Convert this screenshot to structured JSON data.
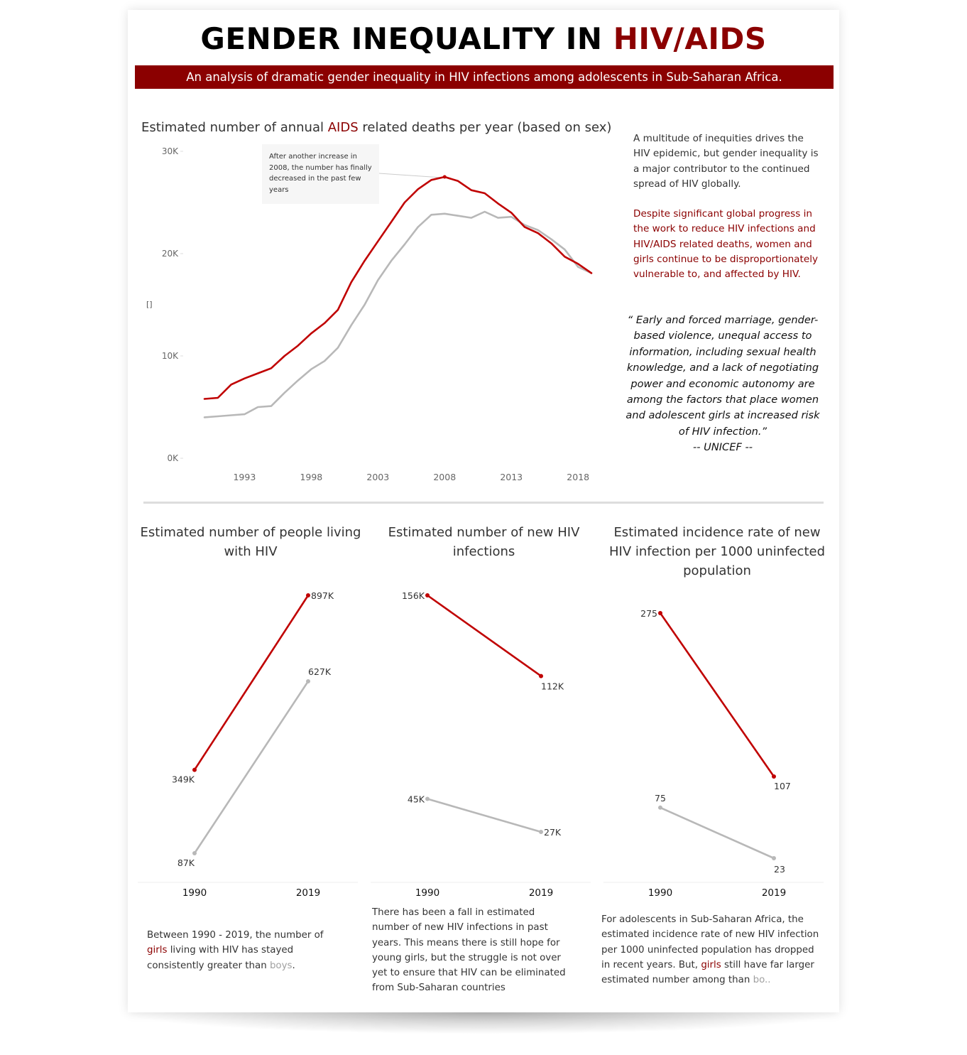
{
  "header": {
    "title_main": "GENDER INEQUALITY IN ",
    "title_accent": "HIV/AIDS",
    "subtitle": "An analysis of dramatic gender inequality in HIV infections among adolescents in Sub-Saharan Africa."
  },
  "colors": {
    "accent": "#8b0000",
    "female_line": "#c00000",
    "male_line": "#b8b8b8",
    "divider": "#dddddd"
  },
  "main_chart": {
    "title_pre": "Estimated number of annual ",
    "title_accent": "AIDS",
    "title_post": " related deaths per year (based on sex)",
    "annotation": "After another increase in 2008, the number has finally decreased in the past few years",
    "y_axis_glyph": "[]"
  },
  "side_panel": {
    "paragraph1": "A multitude of inequities drives the HIV epidemic, but gender inequality is a major contributor to the continued spread of HIV globally.",
    "paragraph2": "Despite significant global progress in the work to reduce HIV infections and HIV/AIDS related deaths, women and girls continue to be disproportionately vulnerable to, and affected by HIV.",
    "quote": "“ Early and forced marriage, gender-based violence, unequal access to information, including sexual health knowledge, and a lack of negotiating power and economic autonomy are among the factors that place women and adolescent girls at increased risk of HIV infection.”",
    "quote_source": "-- UNICEF --"
  },
  "mini_charts": [
    {
      "title": "Estimated number of people living with HIV",
      "note_pre": "Between 1990 - 2019, the number of ",
      "note_girls": "girls",
      "note_mid": " living with HIV has stayed consistently greater than ",
      "note_boys": "boys",
      "note_post": "."
    },
    {
      "title": "Estimated number of new HIV infections",
      "note": "There has been a fall in estimated number of new HIV infections in past years. This means there is still hope for young girls, but the struggle is not over yet to ensure that HIV can be eliminated from Sub-Saharan countries"
    },
    {
      "title": "Estimated incidence rate of new HIV infection per 1000 uninfected population",
      "note_pre": "For adolescents in Sub-Saharan Africa, the estimated incidence rate of new HIV infection per 1000 uninfected population has dropped in recent years. But, ",
      "note_girls": "girls",
      "note_mid": " still have far larger estimated number among than ",
      "note_boys": "bo..",
      "note_post": ""
    }
  ],
  "chart_data": [
    {
      "type": "line",
      "title": "Estimated number of annual AIDS related deaths per year (based on sex)",
      "x": [
        1990,
        1991,
        1992,
        1993,
        1994,
        1995,
        1996,
        1997,
        1998,
        1999,
        2000,
        2001,
        2002,
        2003,
        2004,
        2005,
        2006,
        2007,
        2008,
        2009,
        2010,
        2011,
        2012,
        2013,
        2014,
        2015,
        2016,
        2017,
        2018,
        2019
      ],
      "x_ticks": [
        1993,
        1998,
        2003,
        2008,
        2013,
        2018
      ],
      "y_ticks": [
        0,
        10000,
        20000,
        30000
      ],
      "y_tick_labels": [
        "0K",
        "10K",
        "20K",
        "30K"
      ],
      "ylim": [
        0,
        30000
      ],
      "grid": false,
      "series": [
        {
          "values": [
            5800,
            5900,
            7200,
            7800,
            8300,
            8800,
            10000,
            11000,
            12200,
            13200,
            14500,
            17200,
            19300,
            21200,
            23100,
            25000,
            26300,
            27200,
            27500,
            27100,
            26200,
            25900,
            24900,
            24000,
            22600,
            22000,
            21000,
            19700,
            19000,
            18100
          ]
        },
        {
          "values": [
            4000,
            4100,
            4200,
            4300,
            5000,
            5100,
            6400,
            7600,
            8700,
            9500,
            10800,
            13000,
            15000,
            17400,
            19300,
            20900,
            22600,
            23800,
            23900,
            23700,
            23500,
            24100,
            23500,
            23600,
            22800,
            22300,
            21400,
            20400,
            18700,
            18100
          ]
        }
      ]
    },
    {
      "type": "line",
      "title": "Estimated number of people living with HIV",
      "categories": [
        "1990",
        "2019"
      ],
      "series": [
        {
          "values": [
            349000,
            897000
          ],
          "labels": [
            "349K",
            "897K"
          ]
        },
        {
          "values": [
            87000,
            627000
          ],
          "labels": [
            "87K",
            "627K"
          ]
        }
      ]
    },
    {
      "type": "line",
      "title": "Estimated number of new HIV infections",
      "categories": [
        "1990",
        "2019"
      ],
      "series": [
        {
          "values": [
            156000,
            112000
          ],
          "labels": [
            "156K",
            "112K"
          ]
        },
        {
          "values": [
            45000,
            27000
          ],
          "labels": [
            "45K",
            "27K"
          ]
        }
      ]
    },
    {
      "type": "line",
      "title": "Estimated incidence rate of new HIV infection per 1000 uninfected population",
      "categories": [
        "1990",
        "2019"
      ],
      "series": [
        {
          "values": [
            275,
            107
          ],
          "labels": [
            "275",
            "107"
          ]
        },
        {
          "values": [
            75,
            23
          ],
          "labels": [
            "75",
            "23"
          ]
        }
      ]
    }
  ]
}
